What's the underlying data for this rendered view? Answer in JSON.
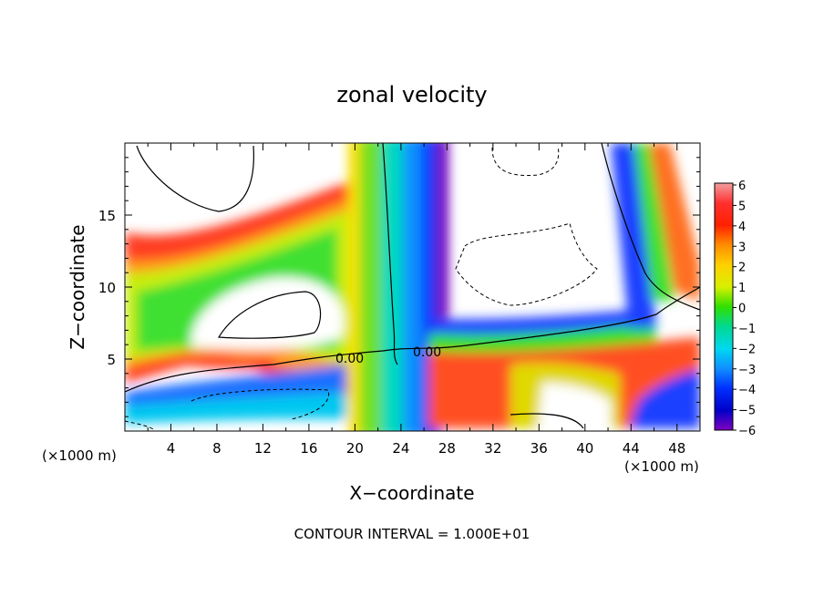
{
  "chart_data": {
    "type": "heatmap",
    "title": "zonal velocity",
    "xlabel": "X−coordinate",
    "ylabel": "Z−coordinate",
    "x_units": "(×1000 m)",
    "z_units": "(×1000 m)",
    "xlim": [
      0,
      50
    ],
    "ylim": [
      0,
      20
    ],
    "x_ticks": [
      "4",
      "8",
      "12",
      "16",
      "20",
      "24",
      "28",
      "32",
      "36",
      "40",
      "44",
      "48"
    ],
    "y_ticks": [
      "5",
      "10",
      "15"
    ],
    "colorbar": {
      "labels": [
        "6",
        "5",
        "4",
        "3",
        "2",
        "1",
        "0",
        "−1",
        "−2",
        "−3",
        "−4",
        "−5",
        "−6"
      ],
      "min": -6,
      "max": 6
    },
    "contour_labels": [
      "0.00",
      "0.00"
    ],
    "footer": "CONTOUR INTERVAL = 1.000E+01"
  }
}
